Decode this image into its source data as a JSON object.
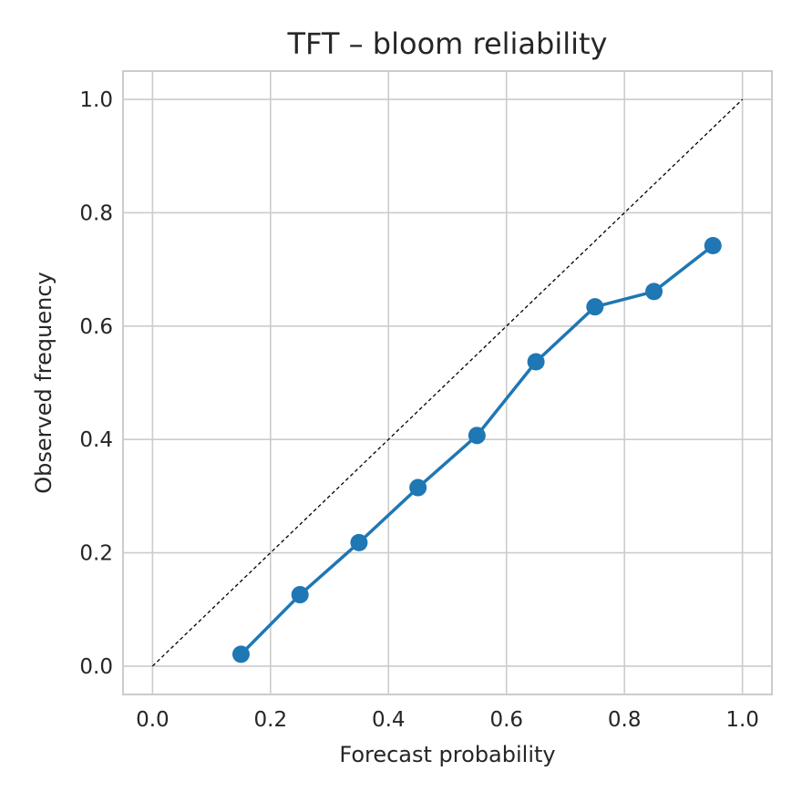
{
  "chart_data": {
    "type": "line",
    "title": "TFT – bloom reliability",
    "xlabel": "Forecast probability",
    "ylabel": "Observed frequency",
    "xlim": [
      -0.05,
      1.05
    ],
    "ylim": [
      -0.05,
      1.05
    ],
    "xticks": [
      "0.0",
      "0.2",
      "0.4",
      "0.6",
      "0.8",
      "1.0"
    ],
    "yticks": [
      "0.0",
      "0.2",
      "0.4",
      "0.6",
      "0.8",
      "1.0"
    ],
    "grid": true,
    "series": [
      {
        "color": "#1f77b4",
        "marker": "circle",
        "x": [
          0.15,
          0.25,
          0.35,
          0.45,
          0.55,
          0.65,
          0.75,
          0.85,
          0.95
        ],
        "y": [
          0.021,
          0.126,
          0.218,
          0.315,
          0.407,
          0.537,
          0.634,
          0.661,
          0.742
        ]
      }
    ],
    "reference_line": {
      "style": "dashed",
      "color": "#000000",
      "x": [
        0,
        1
      ],
      "y": [
        0,
        1
      ]
    }
  }
}
